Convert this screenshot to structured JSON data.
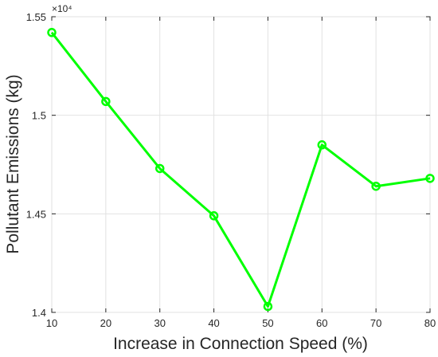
{
  "chart_data": {
    "type": "line",
    "xlabel": "Increase in Connection Speed (%)",
    "ylabel": "Pollutant Emissions (kg)",
    "y_exponent_label": "×10⁴",
    "xlim": [
      10,
      80
    ],
    "ylim": [
      1.4,
      1.55
    ],
    "xticks": [
      "10",
      "20",
      "30",
      "40",
      "50",
      "60",
      "70",
      "80"
    ],
    "yticks": [
      "1.4",
      "1.45",
      "1.5",
      "1.55"
    ],
    "grid": true,
    "series": [
      {
        "color": "#00ff00",
        "marker": "circle",
        "x": [
          10,
          20,
          30,
          40,
          50,
          60,
          70,
          80
        ],
        "y": [
          1.542,
          1.507,
          1.473,
          1.449,
          1.403,
          1.485,
          1.464,
          1.468
        ]
      }
    ]
  }
}
